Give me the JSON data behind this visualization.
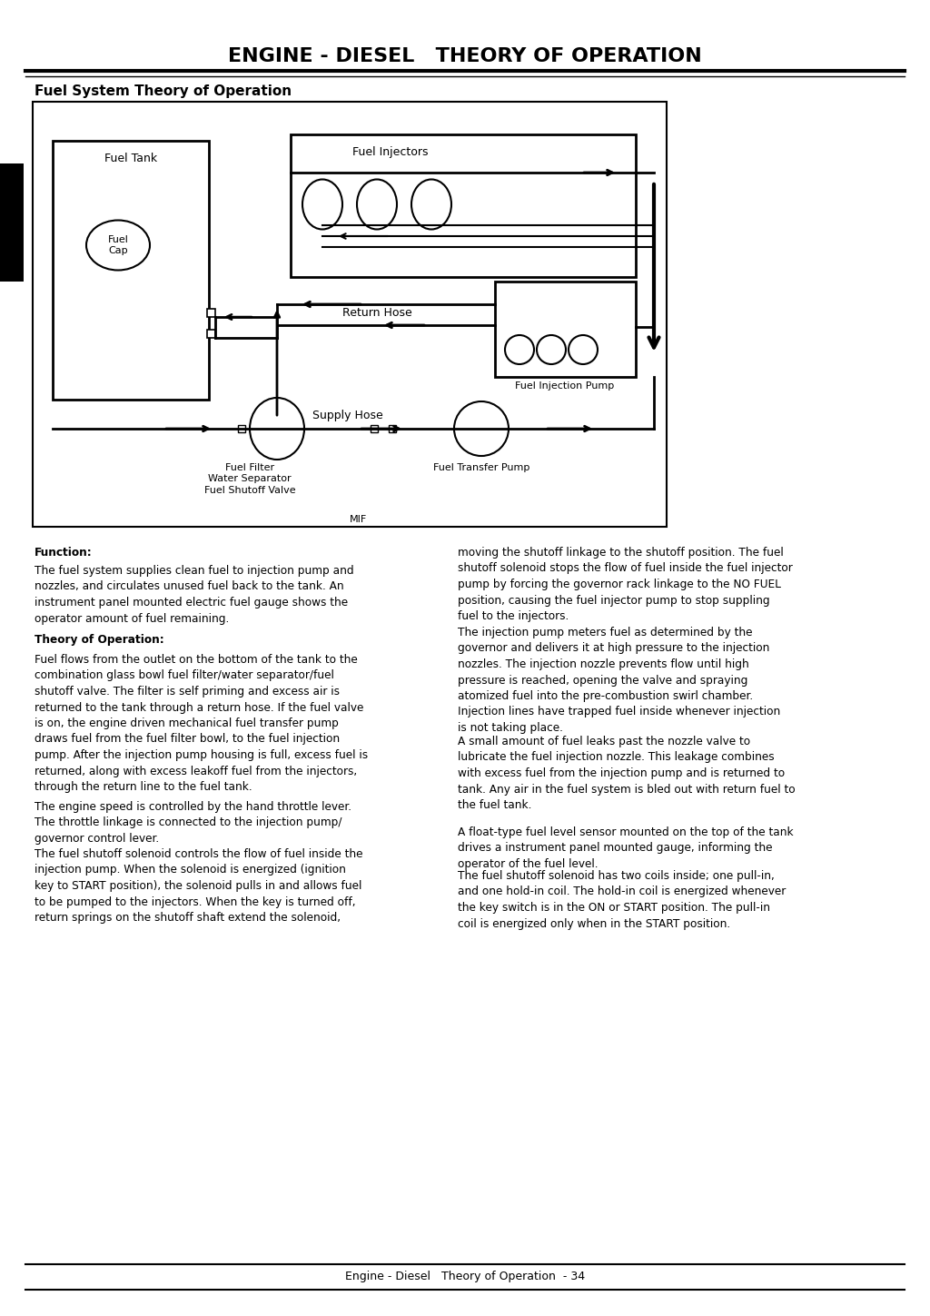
{
  "title": "ENGINE - DIESEL   THEORY OF OPERATION",
  "section_title": "Fuel System Theory of Operation",
  "bg_color": "#ffffff",
  "footer_text": "Engine - Diesel   Theory of Operation  - 34",
  "mif_label": "MIF",
  "diagram_labels": {
    "fuel_tank": "Fuel Tank",
    "fuel_cap": "Fuel\nCap",
    "fuel_injectors": "Fuel Injectors",
    "return_hose": "Return Hose",
    "supply_hose": "Supply Hose",
    "fuel_filter": "Fuel Filter\nWater Separator\nFuel Shutoff Valve",
    "fuel_transfer_pump": "Fuel Transfer Pump",
    "fuel_injection_pump": "Fuel Injection Pump"
  },
  "function_header": "Function:",
  "function_text": "The fuel system supplies clean fuel to injection pump and\nnozzles, and circulates unused fuel back to the tank. An\ninstrument panel mounted electric fuel gauge shows the\noperator amount of fuel remaining.",
  "theory_header": "Theory of Operation:",
  "theory_text1": "Fuel flows from the outlet on the bottom of the tank to the\ncombination glass bowl fuel filter/water separator/fuel\nshutoff valve. The filter is self priming and excess air is\nreturned to the tank through a return hose. If the fuel valve\nis on, the engine driven mechanical fuel transfer pump\ndraws fuel from the fuel filter bowl, to the fuel injection\npump. After the injection pump housing is full, excess fuel is\nreturned, along with excess leakoff fuel from the injectors,\nthrough the return line to the fuel tank.",
  "theory_text2": "The engine speed is controlled by the hand throttle lever.\nThe throttle linkage is connected to the injection pump/\ngovernor control lever.",
  "theory_text3": "The fuel shutoff solenoid controls the flow of fuel inside the\ninjection pump. When the solenoid is energized (ignition\nkey to START position), the solenoid pulls in and allows fuel\nto be pumped to the injectors. When the key is turned off,\nreturn springs on the shutoff shaft extend the solenoid,",
  "theory_text4": "moving the shutoff linkage to the shutoff position. The fuel\nshutoff solenoid stops the flow of fuel inside the fuel injector\npump by forcing the governor rack linkage to the NO FUEL\nposition, causing the fuel injector pump to stop suppling\nfuel to the injectors.",
  "theory_text5": "The injection pump meters fuel as determined by the\ngovernor and delivers it at high pressure to the injection\nnozzles. The injection nozzle prevents flow until high\npressure is reached, opening the valve and spraying\natomized fuel into the pre-combustion swirl chamber.\nInjection lines have trapped fuel inside whenever injection\nis not taking place.",
  "theory_text6": "A small amount of fuel leaks past the nozzle valve to\nlubricate the fuel injection nozzle. This leakage combines\nwith excess fuel from the injection pump and is returned to\ntank. Any air in the fuel system is bled out with return fuel to\nthe fuel tank.",
  "theory_text7": "A float-type fuel level sensor mounted on the top of the tank\ndrives a instrument panel mounted gauge, informing the\noperator of the fuel level.",
  "theory_text8": "The fuel shutoff solenoid has two coils inside; one pull-in,\nand one hold-in coil. The hold-in coil is energized whenever\nthe key switch is in the ON or START position. The pull-in\ncoil is energized only when in the START position."
}
